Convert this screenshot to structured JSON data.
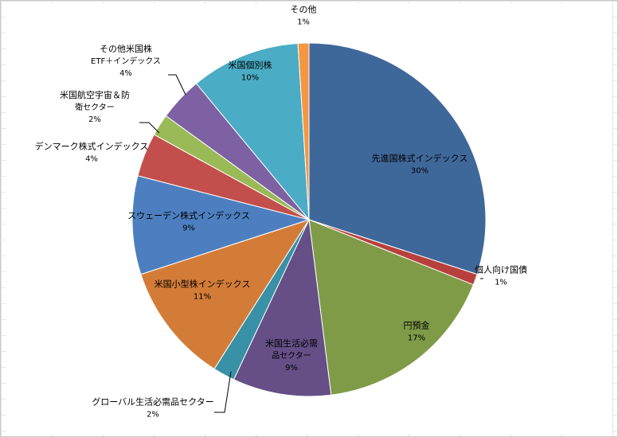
{
  "chart_data": {
    "type": "pie",
    "title": "",
    "legend": "none",
    "slices": [
      {
        "label": "先進国株式インデックス",
        "value": 30,
        "pct_label": "30%",
        "color": "#3f689a"
      },
      {
        "label": "個人向け国債",
        "value": 1,
        "pct_label": "1%",
        "color": "#b7403d"
      },
      {
        "label": "円預金",
        "value": 17,
        "pct_label": "17%",
        "color": "#7f9b47"
      },
      {
        "label": "米国生活必需品セクター",
        "label_lines": [
          "米国生活必需",
          "品セクター"
        ],
        "value": 9,
        "pct_label": "9%",
        "color": "#654f86"
      },
      {
        "label": "グローバル生活必需品セクター",
        "value": 2,
        "pct_label": "2%",
        "color": "#3891a7"
      },
      {
        "label": "米国小型株インデックス",
        "value": 11,
        "pct_label": "11%",
        "color": "#d37c38"
      },
      {
        "label": "スウェーデン株式インデックス",
        "value": 9,
        "pct_label": "9%",
        "color": "#4d7fc0"
      },
      {
        "label": "デンマーク株式インデックス",
        "value": 4,
        "pct_label": "4%",
        "color": "#c24f4b"
      },
      {
        "label": "米国航空宇宙＆防衛セクター",
        "label_lines": [
          "米国航空宇宙＆防",
          "衛セクター"
        ],
        "value": 2,
        "pct_label": "2%",
        "color": "#99ba56"
      },
      {
        "label": "その他米国株 ETF＋インデックス",
        "label_lines": [
          "その他米国株",
          "ETF＋インデックス"
        ],
        "value": 4,
        "pct_label": "4%",
        "color": "#7d61a3"
      },
      {
        "label": "米国個別株",
        "value": 10,
        "pct_label": "10%",
        "color": "#4aacc5"
      },
      {
        "label": "その他",
        "value": 1,
        "pct_label": "1%",
        "color": "#f49740"
      }
    ]
  }
}
